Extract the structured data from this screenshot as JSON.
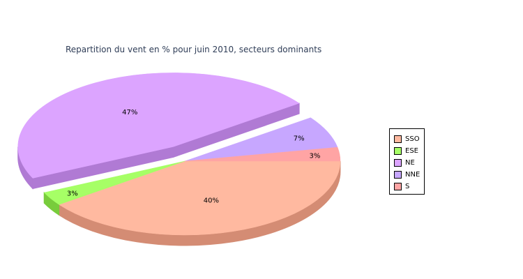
{
  "chart_data": {
    "type": "pie",
    "title": "Repartition du vent en % pour juin 2010, secteurs dominants",
    "slices": [
      {
        "name": "SSO",
        "value": 40,
        "label": "40%",
        "color": "#ffb9a0",
        "side": "#d48c74"
      },
      {
        "name": "ESE",
        "value": 3,
        "label": "3%",
        "color": "#a6ff66",
        "side": "#78cc3c"
      },
      {
        "name": "NE",
        "value": 47,
        "label": "47%",
        "color": "#dca4ff",
        "side": "#b07ad4",
        "exploded": true
      },
      {
        "name": "NNE",
        "value": 7,
        "label": "7%",
        "color": "#c7a7ff",
        "side": "#9f80d6"
      },
      {
        "name": "S",
        "value": 3,
        "label": "3%",
        "color": "#ffa4a4",
        "side": "#d47c7c"
      }
    ],
    "legend_position": "right",
    "style": "3d"
  }
}
